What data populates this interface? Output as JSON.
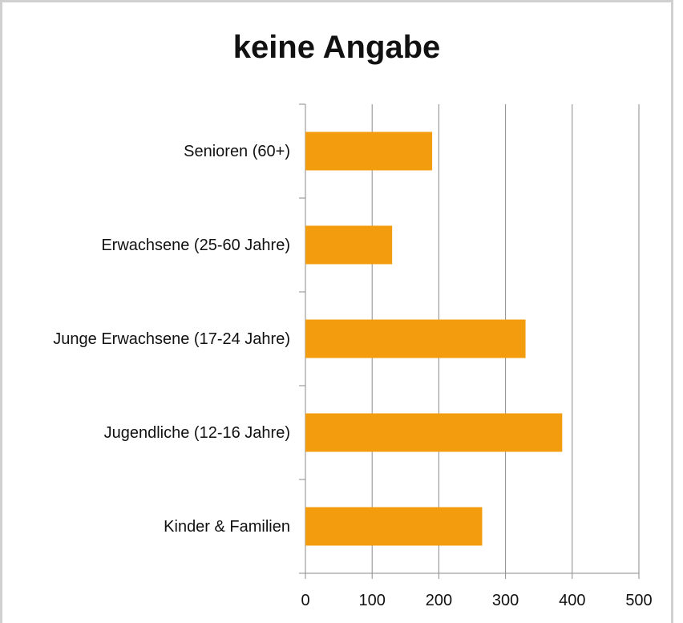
{
  "chart_data": {
    "type": "bar",
    "orientation": "horizontal",
    "title": "keine Angabe",
    "categories": [
      "Senioren (60+)",
      "Erwachsene (25-60 Jahre)",
      "Junge Erwachsene (17-24 Jahre)",
      "Jugendliche (12-16 Jahre)",
      "Kinder & Familien"
    ],
    "values": [
      190,
      130,
      330,
      385,
      265
    ],
    "color": "#f39c0e",
    "xlim": [
      0,
      500
    ],
    "xticks": [
      0,
      100,
      200,
      300,
      400,
      500
    ],
    "grid": true
  }
}
